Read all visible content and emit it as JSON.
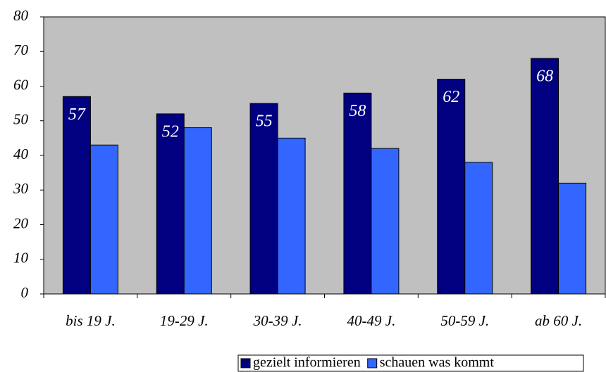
{
  "chart_data": {
    "type": "bar",
    "categories": [
      "bis 19 J.",
      "19-29 J.",
      "30-39 J.",
      "40-49 J.",
      "50-59 J.",
      "ab 60 J."
    ],
    "series": [
      {
        "name": "gezielt informieren",
        "color": "#000080",
        "values": [
          57,
          52,
          55,
          58,
          62,
          68
        ],
        "show_labels": true
      },
      {
        "name": "schauen was kommt",
        "color": "#3366ff",
        "values": [
          43,
          48,
          45,
          42,
          38,
          32
        ],
        "show_labels": false
      }
    ],
    "ylim": [
      0,
      80
    ],
    "yticks": [
      0,
      10,
      20,
      30,
      40,
      50,
      60,
      70,
      80
    ],
    "grid": false,
    "plot_background": "#c0c0c0",
    "legend": "bottom"
  }
}
